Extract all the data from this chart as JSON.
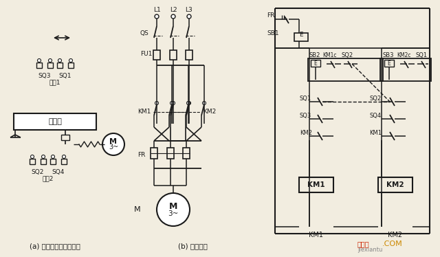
{
  "bg_color": "#f2ede0",
  "line_color": "#1a1a1a",
  "label_a": "(a) 工作自动循环示意图",
  "label_b": "(b) 控制线路",
  "watermark1": "接线图",
  "watermark2": ".COM",
  "watermark3": "jiexiantu",
  "wm_color1": "#cc2200",
  "wm_color2": "#cc8800",
  "wm_color3": "#888888"
}
